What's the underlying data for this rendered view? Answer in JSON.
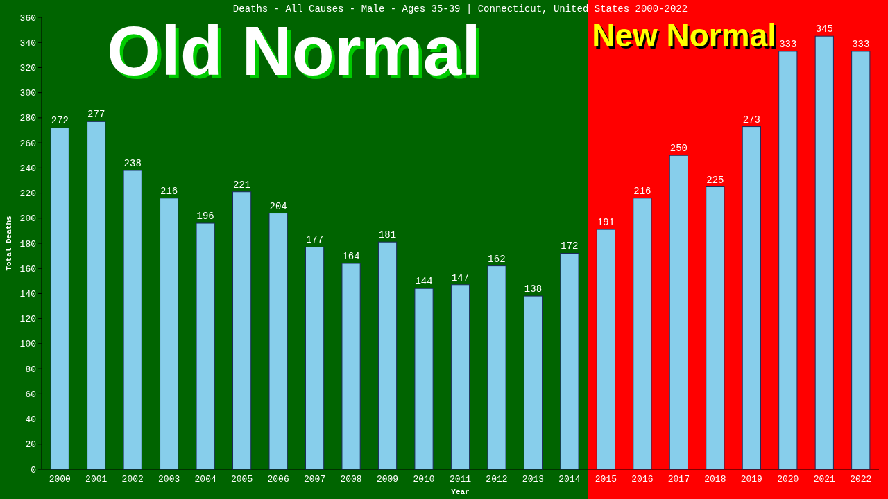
{
  "chart_data": {
    "type": "bar",
    "title": "Deaths - All Causes - Male - Ages 35-39 | Connecticut, United States 2000-2022",
    "xlabel": "Year",
    "ylabel": "Total Deaths",
    "categories": [
      "2000",
      "2001",
      "2002",
      "2003",
      "2004",
      "2005",
      "2006",
      "2007",
      "2008",
      "2009",
      "2010",
      "2011",
      "2012",
      "2013",
      "2014",
      "2015",
      "2016",
      "2017",
      "2018",
      "2019",
      "2020",
      "2021",
      "2022"
    ],
    "values": [
      272,
      277,
      238,
      216,
      196,
      221,
      204,
      177,
      164,
      181,
      144,
      147,
      162,
      138,
      172,
      191,
      216,
      250,
      225,
      273,
      333,
      345,
      333
    ],
    "color": "#87ceeb",
    "ylim": [
      0,
      360
    ],
    "yticks": [
      0,
      20,
      40,
      60,
      80,
      100,
      120,
      140,
      160,
      180,
      200,
      220,
      240,
      260,
      280,
      300,
      320,
      340,
      360
    ],
    "data_labels": true,
    "bands": [
      {
        "axis": "x",
        "from": "2000",
        "to": "2014",
        "label": "Old Normal",
        "color": "#006400"
      },
      {
        "axis": "x",
        "from": "2015",
        "to": "2022",
        "label": "New Normal",
        "color": "#ff0000"
      }
    ]
  }
}
